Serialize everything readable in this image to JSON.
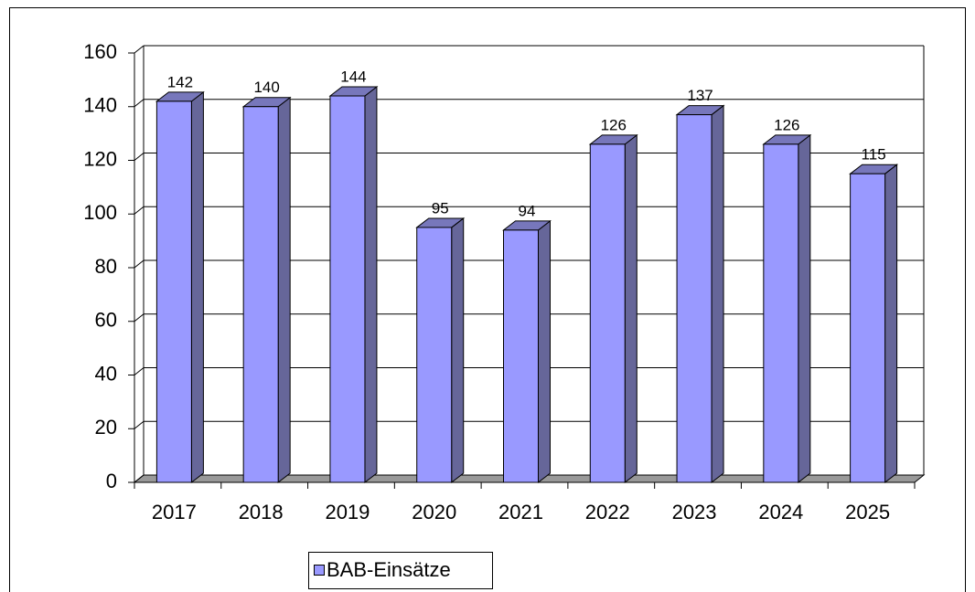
{
  "chart_data": {
    "type": "bar",
    "categories": [
      "2017",
      "2018",
      "2019",
      "2020",
      "2021",
      "2022",
      "2023",
      "2024",
      "2025"
    ],
    "series": [
      {
        "name": "BAB-Einsätze",
        "color": "#9999ff",
        "values": [
          142,
          140,
          144,
          95,
          94,
          126,
          137,
          126,
          115
        ]
      }
    ],
    "ylim": [
      0,
      160
    ],
    "yticks": [
      0,
      20,
      40,
      60,
      80,
      100,
      120,
      140,
      160
    ],
    "grid": true,
    "legend": "bottom"
  }
}
